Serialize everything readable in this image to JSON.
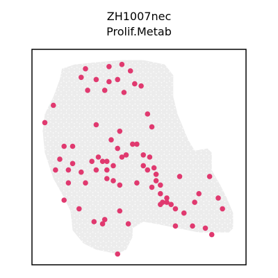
{
  "chart_data": {
    "type": "scatter",
    "title": [
      "ZH1007nec",
      "Prolif.Metab"
    ],
    "xlabel": "",
    "ylabel": "",
    "xlim": [
      0,
      100
    ],
    "ylim": [
      0,
      100
    ],
    "grid": false,
    "legend": "none",
    "colors": {
      "background_spots": "#ececec",
      "highlight_spots": "#e0396f",
      "frame": "#000000"
    },
    "tissue_outline": [
      [
        14,
        91
      ],
      [
        20,
        93
      ],
      [
        30,
        94
      ],
      [
        42,
        95
      ],
      [
        52,
        95
      ],
      [
        62,
        93
      ],
      [
        66,
        88
      ],
      [
        66,
        78
      ],
      [
        68,
        70
      ],
      [
        73,
        58
      ],
      [
        76,
        53
      ],
      [
        82,
        54
      ],
      [
        84,
        52
      ],
      [
        84,
        44
      ],
      [
        88,
        37
      ],
      [
        91,
        31
      ],
      [
        94,
        24
      ],
      [
        94,
        17
      ],
      [
        92,
        15
      ],
      [
        85,
        15
      ],
      [
        78,
        15
      ],
      [
        68,
        17
      ],
      [
        58,
        19
      ],
      [
        52,
        20
      ],
      [
        47,
        17
      ],
      [
        47,
        13
      ],
      [
        44,
        7
      ],
      [
        40,
        5
      ],
      [
        30,
        7
      ],
      [
        24,
        10
      ],
      [
        19,
        16
      ],
      [
        18,
        25
      ],
      [
        14,
        33
      ],
      [
        10,
        40
      ],
      [
        6,
        52
      ],
      [
        5,
        62
      ],
      [
        6,
        70
      ],
      [
        10,
        78
      ],
      [
        13,
        86
      ]
    ],
    "highlight_points": [
      [
        25,
        91
      ],
      [
        36,
        92
      ],
      [
        42,
        93
      ],
      [
        46,
        90
      ],
      [
        23,
        87
      ],
      [
        30,
        86
      ],
      [
        36,
        85
      ],
      [
        40,
        86
      ],
      [
        48,
        84
      ],
      [
        51,
        83
      ],
      [
        26,
        81
      ],
      [
        34,
        81
      ],
      [
        43,
        80
      ],
      [
        10,
        74
      ],
      [
        54,
        70
      ],
      [
        6,
        66
      ],
      [
        30,
        65
      ],
      [
        56,
        64
      ],
      [
        41,
        62
      ],
      [
        49,
        56
      ],
      [
        15,
        55
      ],
      [
        19,
        55
      ],
      [
        37,
        58
      ],
      [
        40,
        54
      ],
      [
        47,
        56
      ],
      [
        52,
        51
      ],
      [
        13,
        49
      ],
      [
        19,
        47
      ],
      [
        28,
        48
      ],
      [
        31,
        50
      ],
      [
        33,
        48
      ],
      [
        35,
        48
      ],
      [
        42,
        50
      ],
      [
        44,
        51
      ],
      [
        55,
        50
      ],
      [
        11,
        44
      ],
      [
        17,
        44
      ],
      [
        23,
        43
      ],
      [
        30,
        44
      ],
      [
        35,
        44
      ],
      [
        38,
        46
      ],
      [
        52,
        46
      ],
      [
        54,
        44
      ],
      [
        57,
        45
      ],
      [
        58,
        42
      ],
      [
        35,
        40
      ],
      [
        38,
        39
      ],
      [
        25,
        38
      ],
      [
        41,
        37
      ],
      [
        17,
        38
      ],
      [
        49,
        38
      ],
      [
        56,
        36
      ],
      [
        58,
        39
      ],
      [
        60,
        37
      ],
      [
        60,
        33
      ],
      [
        63,
        31
      ],
      [
        69,
        41
      ],
      [
        76,
        29
      ],
      [
        78,
        33
      ],
      [
        87,
        31
      ],
      [
        60,
        28
      ],
      [
        61,
        29
      ],
      [
        63,
        29
      ],
      [
        65,
        28
      ],
      [
        67,
        26
      ],
      [
        71,
        24
      ],
      [
        83,
        41
      ],
      [
        89,
        26
      ],
      [
        22,
        26
      ],
      [
        15,
        30
      ],
      [
        45,
        19
      ],
      [
        29,
        20
      ],
      [
        33,
        19
      ],
      [
        34,
        21
      ],
      [
        41,
        25
      ],
      [
        67,
        18
      ],
      [
        75,
        18
      ],
      [
        81,
        17
      ],
      [
        84,
        14
      ],
      [
        40,
        5
      ]
    ]
  }
}
